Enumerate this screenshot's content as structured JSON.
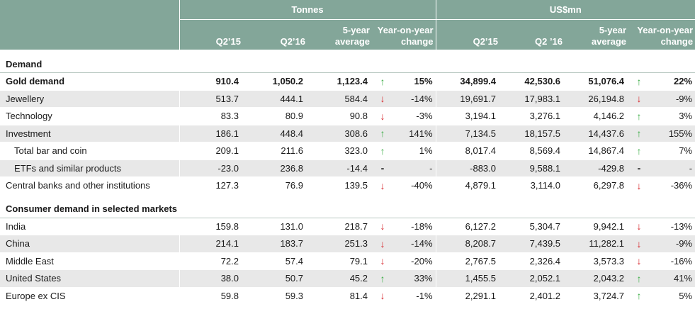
{
  "header": {
    "group_tonnes": "Tonnes",
    "group_usd": "US$mn",
    "tonnes_cols": [
      "Q2’15",
      "Q2’16",
      "5-year average",
      "Year-on-year change"
    ],
    "usd_cols": [
      "Q2’15",
      "Q2 ’16",
      "5-year average",
      "Year-on-year change"
    ]
  },
  "sections": [
    {
      "title": "Demand",
      "rows": [
        {
          "label": "Gold demand",
          "t": [
            "910.4",
            "1,050.2",
            "1,123.4"
          ],
          "t_dir": "up",
          "t_pct": "15%",
          "u": [
            "34,899.4",
            "42,530.6",
            "51,076.4"
          ],
          "u_dir": "up",
          "u_pct": "22%"
        },
        {
          "label": "Jewellery",
          "t": [
            "513.7",
            "444.1",
            "584.4"
          ],
          "t_dir": "down",
          "t_pct": "-14%",
          "u": [
            "19,691.7",
            "17,983.1",
            "26,194.8"
          ],
          "u_dir": "down",
          "u_pct": "-9%"
        },
        {
          "label": "Technology",
          "t": [
            "83.3",
            "80.9",
            "90.8"
          ],
          "t_dir": "down",
          "t_pct": "-3%",
          "u": [
            "3,194.1",
            "3,276.1",
            "4,146.2"
          ],
          "u_dir": "up",
          "u_pct": "3%"
        },
        {
          "label": "Investment",
          "t": [
            "186.1",
            "448.4",
            "308.6"
          ],
          "t_dir": "up",
          "t_pct": "141%",
          "u": [
            "7,134.5",
            "18,157.5",
            "14,437.6"
          ],
          "u_dir": "up",
          "u_pct": "155%"
        },
        {
          "label": "Total bar and coin",
          "t": [
            "209.1",
            "211.6",
            "323.0"
          ],
          "t_dir": "up",
          "t_pct": "1%",
          "u": [
            "8,017.4",
            "8,569.4",
            "14,867.4"
          ],
          "u_dir": "up",
          "u_pct": "7%"
        },
        {
          "label": "ETFs and similar products",
          "t": [
            "-23.0",
            "236.8",
            "-14.4"
          ],
          "t_dir": "dash",
          "t_pct": "-",
          "u": [
            "-883.0",
            "9,588.1",
            "-429.8"
          ],
          "u_dir": "dash",
          "u_pct": "-"
        },
        {
          "label": "Central banks and other institutions",
          "t": [
            "127.3",
            "76.9",
            "139.5"
          ],
          "t_dir": "down",
          "t_pct": "-40%",
          "u": [
            "4,879.1",
            "3,114.0",
            "6,297.8"
          ],
          "u_dir": "down",
          "u_pct": "-36%"
        }
      ]
    },
    {
      "title": "Consumer demand in selected markets",
      "rows": [
        {
          "label": "India",
          "t": [
            "159.8",
            "131.0",
            "218.7"
          ],
          "t_dir": "down",
          "t_pct": "-18%",
          "u": [
            "6,127.2",
            "5,304.7",
            "9,942.1"
          ],
          "u_dir": "down",
          "u_pct": "-13%"
        },
        {
          "label": "China",
          "t": [
            "214.1",
            "183.7",
            "251.3"
          ],
          "t_dir": "down",
          "t_pct": "-14%",
          "u": [
            "8,208.7",
            "7,439.5",
            "11,282.1"
          ],
          "u_dir": "down",
          "u_pct": "-9%"
        },
        {
          "label": "Middle East",
          "t": [
            "72.2",
            "57.4",
            "79.1"
          ],
          "t_dir": "down",
          "t_pct": "-20%",
          "u": [
            "2,767.5",
            "2,326.4",
            "3,573.3"
          ],
          "u_dir": "down",
          "u_pct": "-16%"
        },
        {
          "label": "United States",
          "t": [
            "38.0",
            "50.7",
            "45.2"
          ],
          "t_dir": "up",
          "t_pct": "33%",
          "u": [
            "1,455.5",
            "2,052.1",
            "2,043.2"
          ],
          "u_dir": "up",
          "u_pct": "41%"
        },
        {
          "label": "Europe ex CIS",
          "t": [
            "59.8",
            "59.3",
            "81.4"
          ],
          "t_dir": "down",
          "t_pct": "-1%",
          "u": [
            "2,291.1",
            "2,401.2",
            "3,724.7"
          ],
          "u_dir": "up",
          "u_pct": "5%"
        }
      ]
    }
  ],
  "icons": {
    "up": "up-arrow-icon",
    "down": "down-arrow-icon"
  },
  "colors": {
    "header_bg": "#83a699",
    "shade_bg": "#e8e8e8",
    "up": "#3fae49",
    "down": "#d7262b"
  }
}
